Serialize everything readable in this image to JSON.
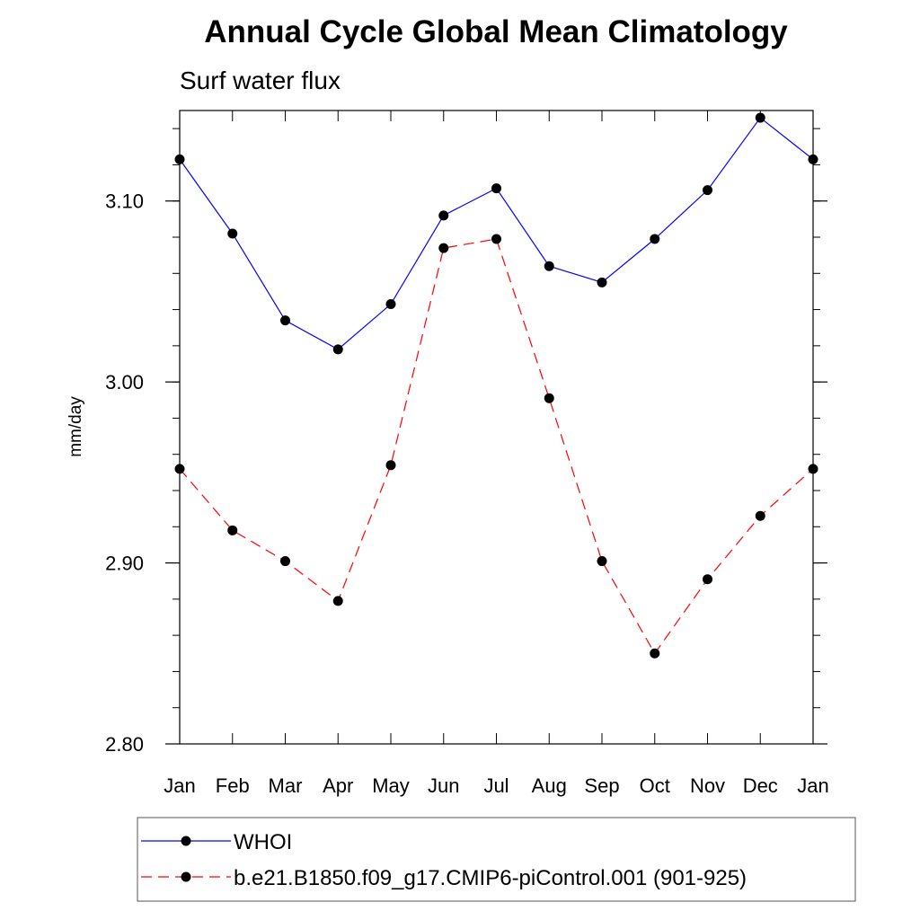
{
  "chart_data": {
    "type": "line",
    "title": "Annual Cycle Global Mean Climatology",
    "subtitle": "Surf water flux",
    "xlabel": "",
    "ylabel": "mm/day",
    "categories": [
      "Jan",
      "Feb",
      "Mar",
      "Apr",
      "May",
      "Jun",
      "Jul",
      "Aug",
      "Sep",
      "Oct",
      "Nov",
      "Dec",
      "Jan"
    ],
    "ylim": [
      2.8,
      3.15
    ],
    "yticks": [
      2.8,
      2.9,
      3.0,
      3.1
    ],
    "ytick_labels": [
      "2.80",
      "2.90",
      "3.00",
      "3.10"
    ],
    "series": [
      {
        "name": "WHOI",
        "color": "#0000ff",
        "line_style": "solid",
        "marker": "filled-circle",
        "values": [
          3.123,
          3.082,
          3.034,
          3.018,
          3.043,
          3.092,
          3.107,
          3.064,
          3.055,
          3.079,
          3.106,
          3.146,
          3.123
        ]
      },
      {
        "name": "b.e21.B1850.f09_g17.CMIP6-piControl.001 (901-925)",
        "color": "#ff0000",
        "line_style": "dashed",
        "marker": "filled-circle",
        "values": [
          2.952,
          2.918,
          2.901,
          2.879,
          2.954,
          3.074,
          3.079,
          2.991,
          2.901,
          2.85,
          2.891,
          2.926,
          2.952
        ]
      }
    ],
    "legend_position": "bottom",
    "grid": false
  }
}
